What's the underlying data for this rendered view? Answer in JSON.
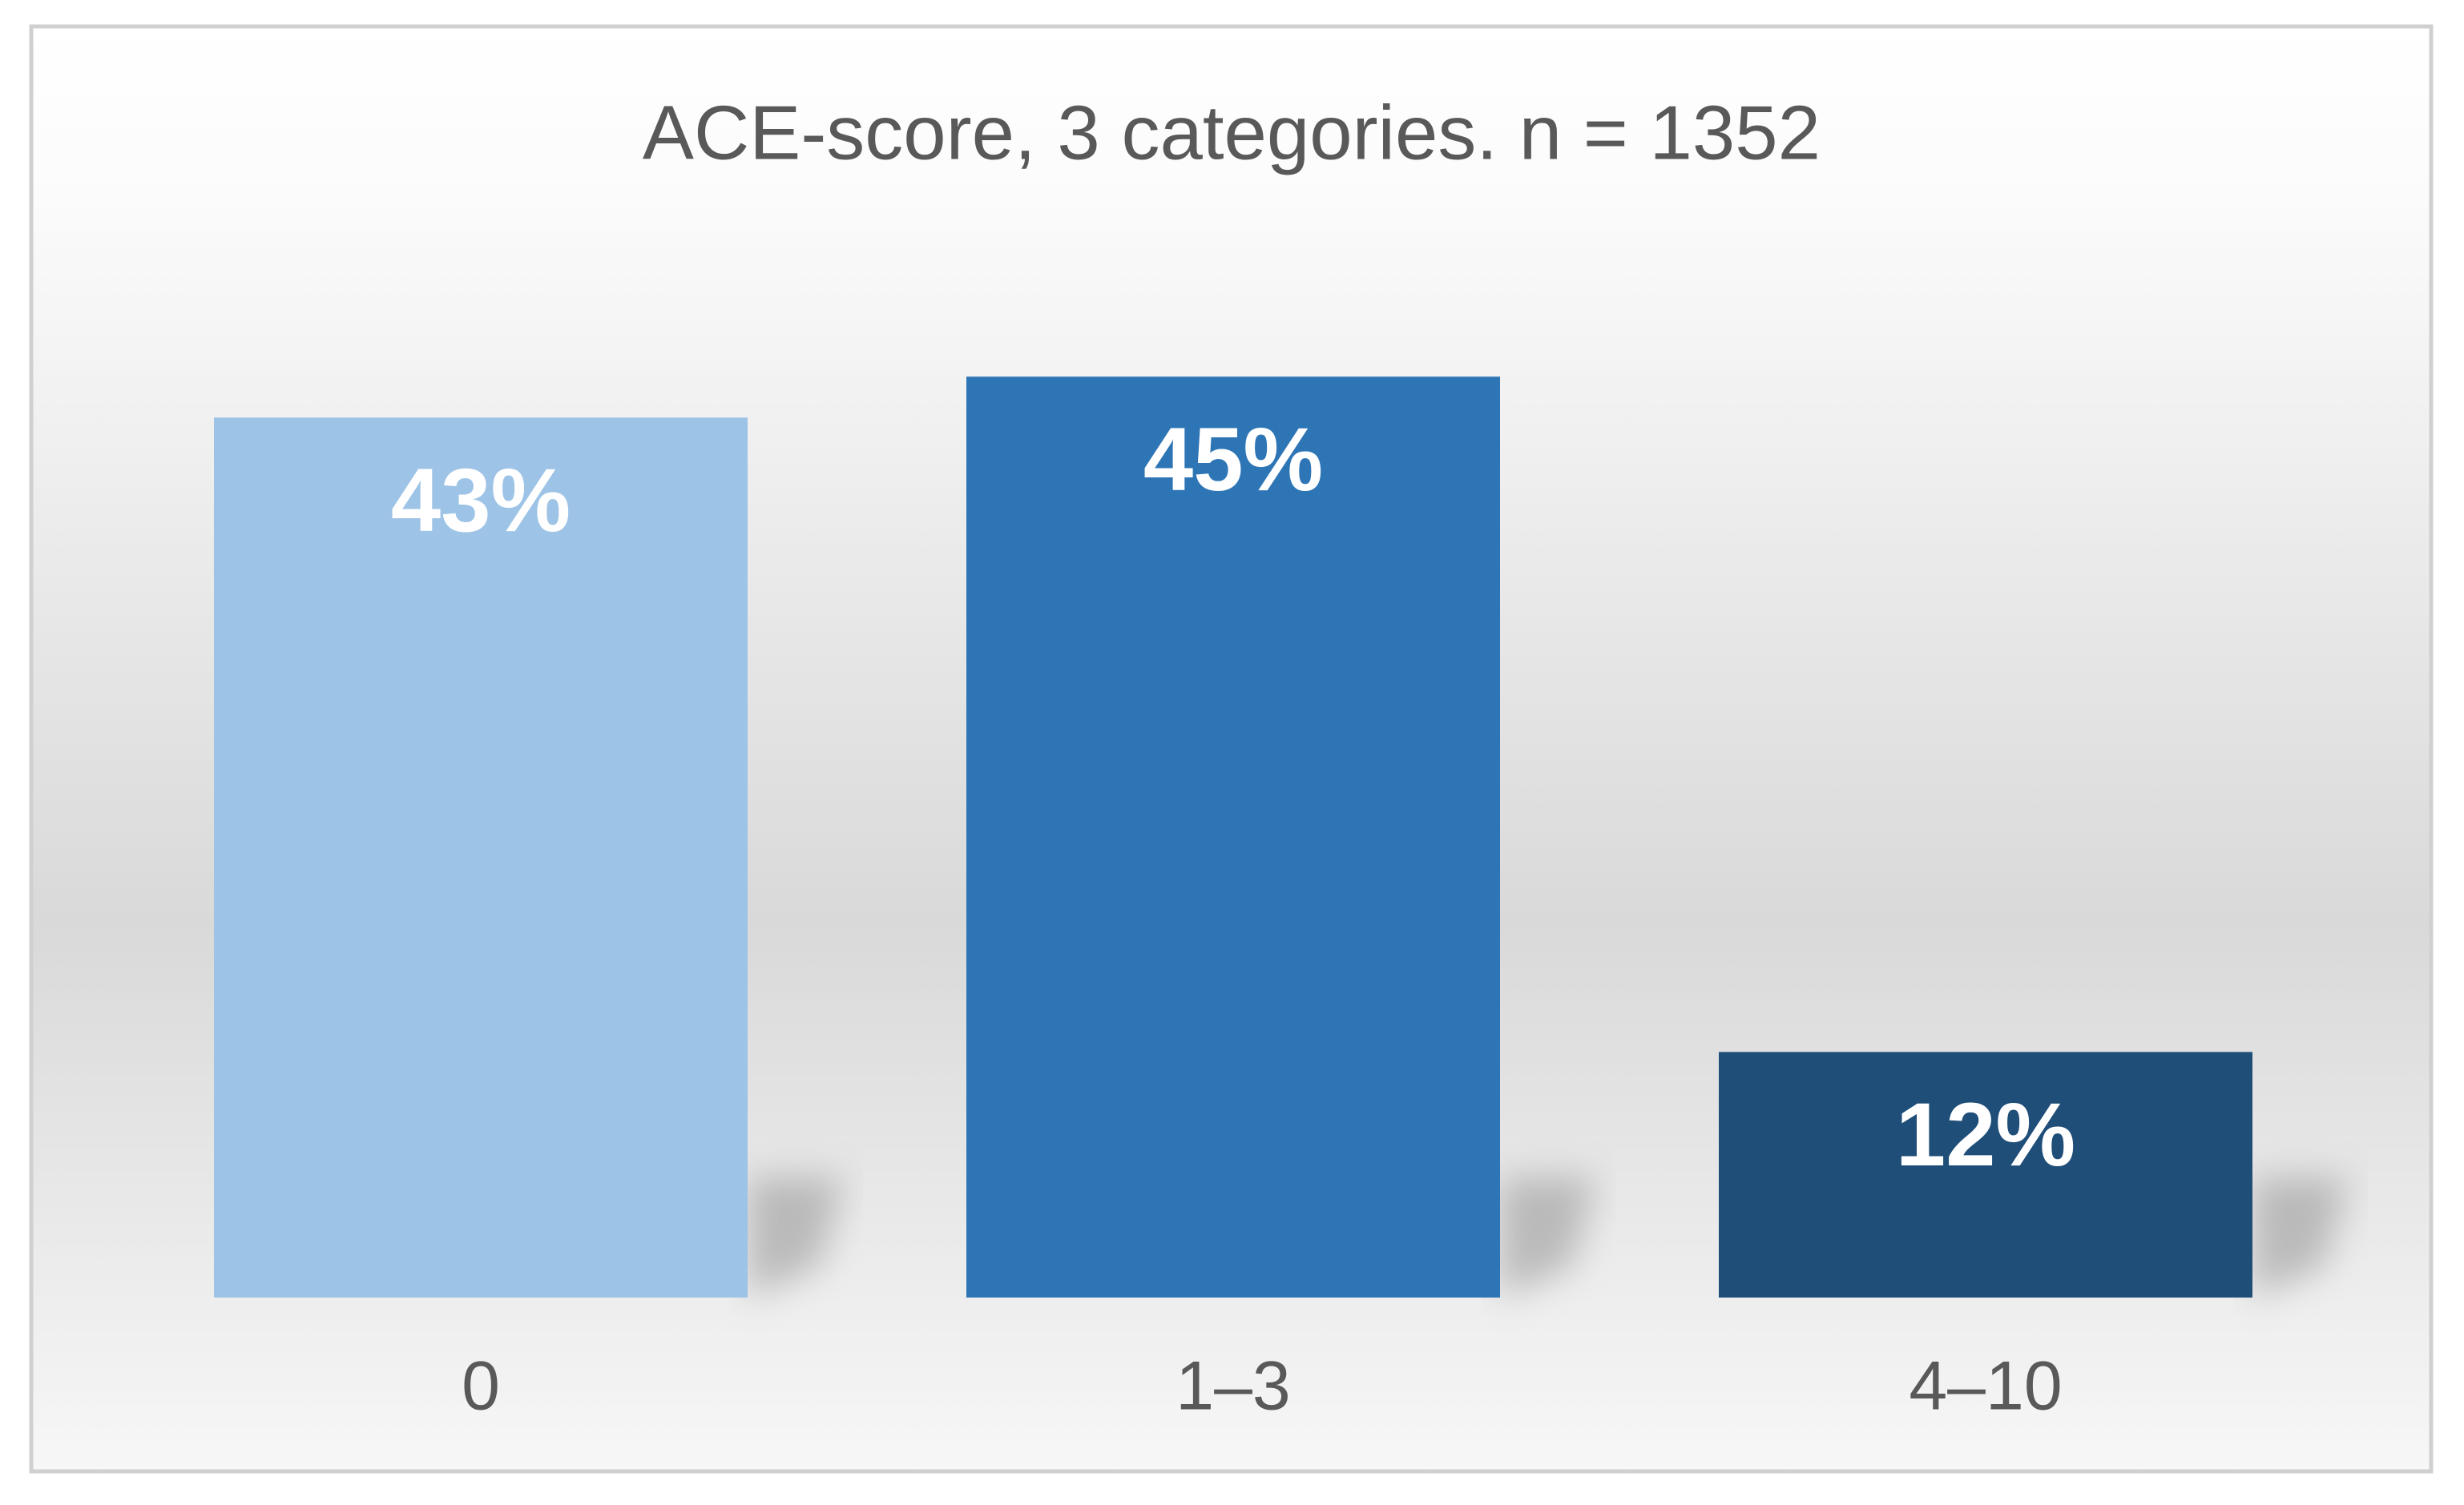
{
  "chart_data": {
    "type": "bar",
    "title": "ACE-score, 3 categories. n = 1352",
    "categories": [
      "0",
      "1–3",
      "4–10"
    ],
    "values": [
      43,
      45,
      12
    ],
    "value_labels": [
      "43%",
      "45%",
      "12%"
    ],
    "colors": [
      "#9dc3e6",
      "#2e75b6",
      "#1f4e79"
    ]
  }
}
